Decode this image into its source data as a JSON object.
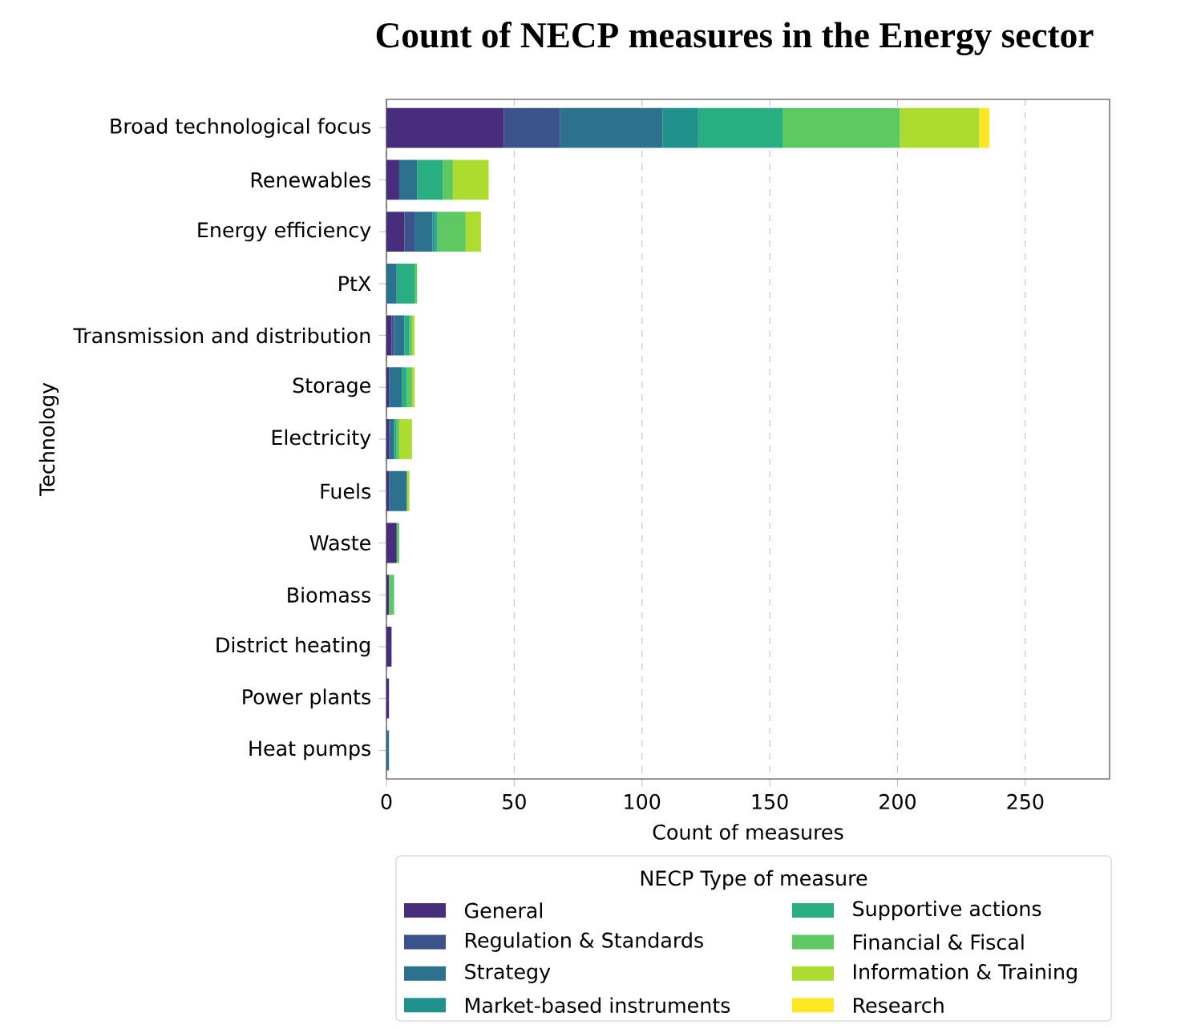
{
  "chart_data": {
    "type": "bar",
    "orientation": "horizontal",
    "stacked": true,
    "title": "Count of NECP measures in the Energy sector",
    "xlabel": "Count of measures",
    "ylabel": "Technology",
    "legend_title": "NECP Type of measure",
    "legend": "bottom",
    "grid": "x",
    "categories": [
      "Broad technological focus",
      "Renewables",
      "Energy efficiency",
      "PtX",
      "Transmission and distribution",
      "Storage",
      "Electricity",
      "Fuels",
      "Waste",
      "Biomass",
      "District heating",
      "Power plants",
      "Heat pumps"
    ],
    "xlim": [
      0,
      283
    ],
    "xticks": [
      0,
      50,
      100,
      150,
      200,
      250
    ],
    "series": [
      {
        "name": "General",
        "color": "#472d7b",
        "values": [
          46,
          5,
          7,
          0,
          2,
          1,
          1,
          1,
          4,
          1,
          2,
          1,
          0
        ]
      },
      {
        "name": "Regulation & Standards",
        "color": "#3b528b",
        "values": [
          22,
          0,
          4,
          0,
          1,
          0,
          0,
          0,
          0,
          0,
          0,
          0,
          0
        ]
      },
      {
        "name": "Strategy",
        "color": "#2c728e",
        "values": [
          40,
          7,
          7,
          4,
          4,
          5,
          2,
          7,
          0,
          0,
          0,
          0,
          1
        ]
      },
      {
        "name": "Market-based instruments",
        "color": "#21918c",
        "values": [
          14,
          0,
          1,
          0,
          0,
          0,
          0,
          0,
          0,
          0,
          0,
          0,
          0
        ]
      },
      {
        "name": "Supportive actions",
        "color": "#28ae80",
        "values": [
          33,
          10,
          1,
          7,
          2,
          2,
          1,
          0,
          0,
          0,
          0,
          0,
          0
        ]
      },
      {
        "name": "Financial & Fiscal",
        "color": "#5ec962",
        "values": [
          46,
          4,
          11,
          1,
          1,
          2,
          1,
          0,
          1,
          2,
          0,
          0,
          0
        ]
      },
      {
        "name": "Information & Training",
        "color": "#addc30",
        "values": [
          31,
          14,
          6,
          0,
          1,
          1,
          5,
          1,
          0,
          0,
          0,
          0,
          0
        ]
      },
      {
        "name": "Research",
        "color": "#fde725",
        "values": [
          4,
          0,
          0,
          0,
          0,
          0,
          0,
          0,
          0,
          0,
          0,
          0,
          0
        ]
      }
    ]
  }
}
